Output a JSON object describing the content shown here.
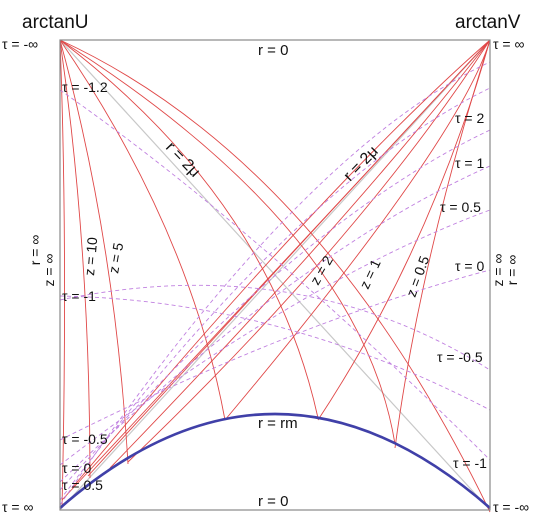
{
  "axes": {
    "left": "arctanU",
    "right": "arctanV"
  },
  "corners": {
    "top_left": "τ = -∞",
    "top_right": "τ = ∞",
    "bottom_left": "τ = ∞",
    "bottom_right": "τ = -∞"
  },
  "edges": {
    "top": "r = 0",
    "bottom": "r = 0"
  },
  "side_labels": {
    "left_r": "r = ∞",
    "left_z": "z = ∞",
    "right_r": "r = ∞",
    "right_z": "z = ∞"
  },
  "diagonal_labels": {
    "left": "r = 2μ",
    "right": "r = 2μ"
  },
  "curve_label": "r = rm",
  "left_tau_labels": [
    "τ = -1.2",
    "τ = -1",
    "τ = -0.5",
    "τ = 0",
    "τ = 0.5"
  ],
  "right_tau_labels": [
    "τ = 2",
    "τ = 1",
    "τ = 0.5",
    "τ = 0",
    "τ = -0.5",
    "τ = -1"
  ],
  "z_labels_left": [
    "z = 10",
    "z = 5"
  ],
  "z_labels_right": [
    "z = 2",
    "z = 1",
    "z = 0.5"
  ],
  "colors": {
    "frame": "#888888",
    "diagonal": "#c8c8c8",
    "constant_z": "#e04848",
    "constant_tau": "#c080e0",
    "r_min_curve": "#4040a8"
  }
}
